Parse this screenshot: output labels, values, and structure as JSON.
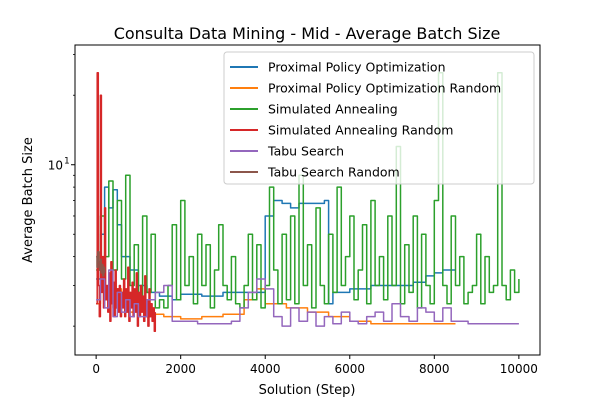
{
  "chart_data": {
    "type": "line",
    "title": "Consulta Data Mining - Mid - Average Batch Size",
    "xlabel": "Solution (Step)",
    "ylabel": "Average Batch Size",
    "xlim": [
      -500,
      10500
    ],
    "ylim": [
      1.5,
      33
    ],
    "yscale": "log",
    "x_ticks": [
      0,
      2000,
      4000,
      6000,
      8000,
      10000
    ],
    "x_tick_labels": [
      "0",
      "2000",
      "4000",
      "6000",
      "8000",
      "10000"
    ],
    "y_ticks": [
      10
    ],
    "y_tick_labels": [
      "10"
    ],
    "y_tick_exponent": "1",
    "grid": false,
    "legend_position": "top-right",
    "series": [
      {
        "name": "Proximal Policy Optimization",
        "color": "#1f77b4",
        "x": [
          0,
          100,
          200,
          300,
          400,
          500,
          600,
          800,
          1000,
          1200,
          1500,
          1800,
          2000,
          2500,
          3000,
          3500,
          3800,
          4000,
          4200,
          4400,
          4600,
          4800,
          5000,
          5200,
          5400,
          5500,
          5600,
          6000,
          6500,
          7000,
          7500,
          7800,
          8000,
          8200,
          8500
        ],
        "values": [
          3.2,
          5.0,
          8.0,
          6.5,
          7.8,
          5.5,
          4.0,
          3.5,
          3.0,
          2.8,
          2.7,
          2.6,
          2.75,
          2.7,
          2.8,
          2.8,
          2.8,
          6.0,
          7.0,
          6.8,
          6.5,
          6.8,
          6.8,
          6.8,
          7.0,
          2.5,
          2.8,
          2.9,
          3.0,
          3.0,
          3.1,
          3.3,
          3.4,
          3.5,
          3.5
        ]
      },
      {
        "name": "Proximal Policy Optimization Random",
        "color": "#ff7f0e",
        "x": [
          0,
          100,
          200,
          300,
          400,
          500,
          600,
          700,
          800,
          900,
          1000,
          1200,
          1400,
          1600,
          2000,
          2500,
          3000,
          3500,
          3800,
          4000,
          4500,
          5000,
          5500,
          6000,
          6500,
          7000,
          7500,
          8000,
          8500
        ],
        "values": [
          2.5,
          3.0,
          2.6,
          2.8,
          2.4,
          2.9,
          2.5,
          2.7,
          2.3,
          2.6,
          2.4,
          2.2,
          2.25,
          2.2,
          2.15,
          2.2,
          2.25,
          2.6,
          2.9,
          2.5,
          2.4,
          2.3,
          2.2,
          2.1,
          2.05,
          2.05,
          2.05,
          2.05,
          2.05
        ]
      },
      {
        "name": "Simulated Annealing",
        "color": "#2ca02c",
        "x": [
          0,
          100,
          200,
          300,
          400,
          500,
          600,
          700,
          800,
          900,
          1000,
          1100,
          1200,
          1300,
          1400,
          1500,
          1600,
          1700,
          1800,
          1900,
          2000,
          2100,
          2200,
          2300,
          2400,
          2500,
          2600,
          2700,
          2800,
          2900,
          3000,
          3100,
          3200,
          3300,
          3400,
          3500,
          3600,
          3700,
          3800,
          3900,
          4000,
          4100,
          4200,
          4300,
          4400,
          4500,
          4600,
          4700,
          4800,
          4900,
          5000,
          5100,
          5200,
          5300,
          5400,
          5500,
          5600,
          5700,
          5800,
          5900,
          6000,
          6100,
          6200,
          6300,
          6400,
          6500,
          6600,
          6700,
          6800,
          6900,
          7000,
          7100,
          7200,
          7300,
          7400,
          7500,
          7600,
          7700,
          7800,
          7900,
          8000,
          8100,
          8200,
          8300,
          8400,
          8500,
          8600,
          8700,
          8800,
          8900,
          9000,
          9100,
          9200,
          9300,
          9400,
          9500,
          9600,
          9700,
          9800,
          9900,
          10000
        ],
        "values": [
          3.5,
          6.0,
          4.0,
          8.5,
          3.5,
          7.0,
          3.2,
          9.0,
          3.0,
          4.5,
          2.5,
          6.0,
          2.8,
          5.0,
          2.4,
          2.6,
          2.4,
          3.0,
          5.5,
          2.6,
          7.0,
          3.0,
          4.0,
          2.5,
          5.0,
          3.0,
          4.5,
          2.4,
          3.5,
          5.5,
          3.0,
          2.6,
          4.0,
          2.5,
          2.4,
          3.0,
          5.0,
          2.6,
          4.5,
          2.4,
          3.0,
          8.0,
          3.5,
          2.5,
          5.0,
          2.6,
          6.0,
          2.5,
          9.0,
          3.0,
          4.5,
          2.4,
          6.5,
          3.0,
          2.5,
          5.0,
          2.8,
          8.0,
          3.0,
          4.0,
          6.0,
          2.6,
          3.5,
          5.5,
          2.5,
          7.0,
          3.0,
          4.0,
          2.6,
          6.0,
          3.0,
          12.0,
          2.5,
          4.5,
          2.8,
          6.0,
          2.4,
          5.0,
          3.0,
          2.5,
          7.0,
          25.0,
          3.0,
          2.5,
          6.0,
          3.0,
          4.0,
          2.5,
          2.8,
          3.0,
          5.0,
          2.5,
          4.0,
          2.8,
          3.0,
          25.0,
          3.0,
          2.6,
          3.5,
          2.8,
          3.2
        ]
      },
      {
        "name": "Simulated Annealing Random",
        "color": "#d62728",
        "x": [
          0,
          25,
          50,
          75,
          100,
          125,
          150,
          175,
          200,
          225,
          250,
          275,
          300,
          325,
          350,
          375,
          400,
          425,
          450,
          475,
          500,
          525,
          550,
          575,
          600,
          625,
          650,
          675,
          700,
          725,
          750,
          775,
          800,
          825,
          850,
          875,
          900,
          925,
          950,
          975,
          1000,
          1025,
          1050,
          1075,
          1100,
          1125,
          1150,
          1175,
          1200,
          1225,
          1250,
          1275,
          1300,
          1325,
          1350,
          1375,
          1400
        ],
        "values": [
          2.5,
          25.0,
          3.0,
          2.2,
          20.0,
          2.8,
          4.0,
          2.4,
          6.5,
          2.6,
          3.0,
          2.3,
          3.4,
          2.1,
          3.8,
          2.5,
          3.1,
          2.2,
          3.5,
          2.4,
          2.9,
          2.3,
          3.0,
          2.2,
          2.8,
          2.4,
          3.2,
          2.2,
          2.9,
          2.3,
          3.6,
          2.1,
          2.8,
          2.4,
          3.1,
          2.2,
          2.9,
          2.3,
          3.4,
          2.0,
          2.8,
          2.2,
          3.0,
          2.3,
          2.7,
          2.1,
          3.3,
          2.2,
          2.6,
          2.0,
          2.9,
          2.2,
          2.5,
          2.1,
          2.4,
          1.9,
          2.3
        ]
      },
      {
        "name": "Tabu Search",
        "color": "#9467bd",
        "x": [
          0,
          100,
          200,
          300,
          400,
          500,
          600,
          700,
          800,
          900,
          1000,
          1200,
          1400,
          1600,
          1800,
          2000,
          2200,
          2400,
          2600,
          2800,
          3000,
          3200,
          3400,
          3600,
          3800,
          4000,
          4200,
          4400,
          4600,
          4800,
          5000,
          5200,
          5400,
          5600,
          5800,
          6000,
          6200,
          6400,
          6600,
          6800,
          7000,
          7200,
          7400,
          7600,
          7800,
          8000,
          8200,
          8400,
          8600,
          8800,
          9000,
          9200,
          9400,
          9600,
          9800,
          10000
        ],
        "values": [
          2.6,
          3.2,
          2.4,
          3.5,
          2.2,
          2.8,
          2.3,
          2.6,
          2.2,
          2.5,
          2.2,
          2.6,
          2.8,
          3.0,
          2.1,
          2.1,
          2.1,
          2.05,
          2.05,
          2.05,
          2.05,
          2.1,
          2.4,
          2.8,
          3.2,
          2.9,
          2.2,
          2.0,
          2.4,
          2.1,
          2.3,
          2.0,
          2.2,
          2.05,
          2.3,
          2.1,
          2.05,
          2.2,
          2.3,
          2.1,
          2.5,
          2.2,
          2.1,
          2.4,
          2.3,
          2.1,
          2.4,
          2.1,
          2.1,
          2.05,
          2.05,
          2.05,
          2.05,
          2.05,
          2.05,
          2.05
        ]
      },
      {
        "name": "Tabu Search Random",
        "color": "#8c564b",
        "x": [
          0,
          20,
          40,
          60,
          80,
          100,
          120,
          140,
          160,
          180,
          200
        ],
        "values": [
          4.0,
          3.6,
          4.2,
          3.8,
          3.5,
          3.9,
          3.4,
          3.7,
          3.3,
          3.6,
          3.4
        ]
      }
    ]
  }
}
